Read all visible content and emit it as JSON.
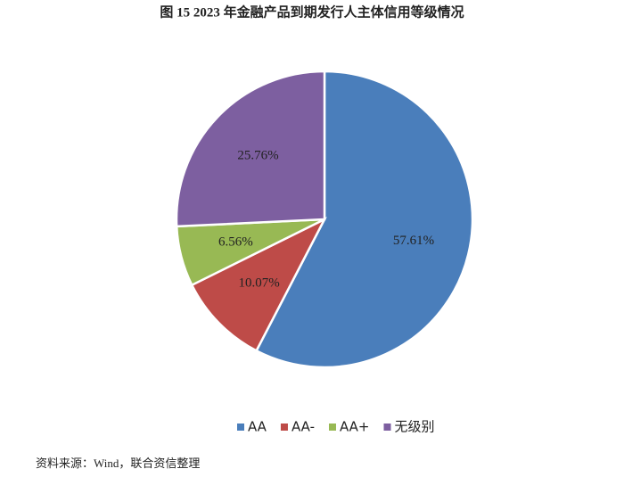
{
  "chart_data": {
    "type": "pie",
    "title": "图 15   2023 年金融产品到期发行人主体信用等级情况",
    "categories": [
      "AA",
      "AA-",
      "AA+",
      "无级别"
    ],
    "values": [
      57.61,
      10.07,
      6.56,
      25.76
    ],
    "value_labels": [
      "57.61%",
      "10.07%",
      "6.56%",
      "25.76%"
    ],
    "colors": [
      "#4a7ebb",
      "#be4b48",
      "#98b954",
      "#7d5fa0"
    ],
    "legend": "bottom",
    "source": "资料来源：Wind，联合资信整理"
  }
}
